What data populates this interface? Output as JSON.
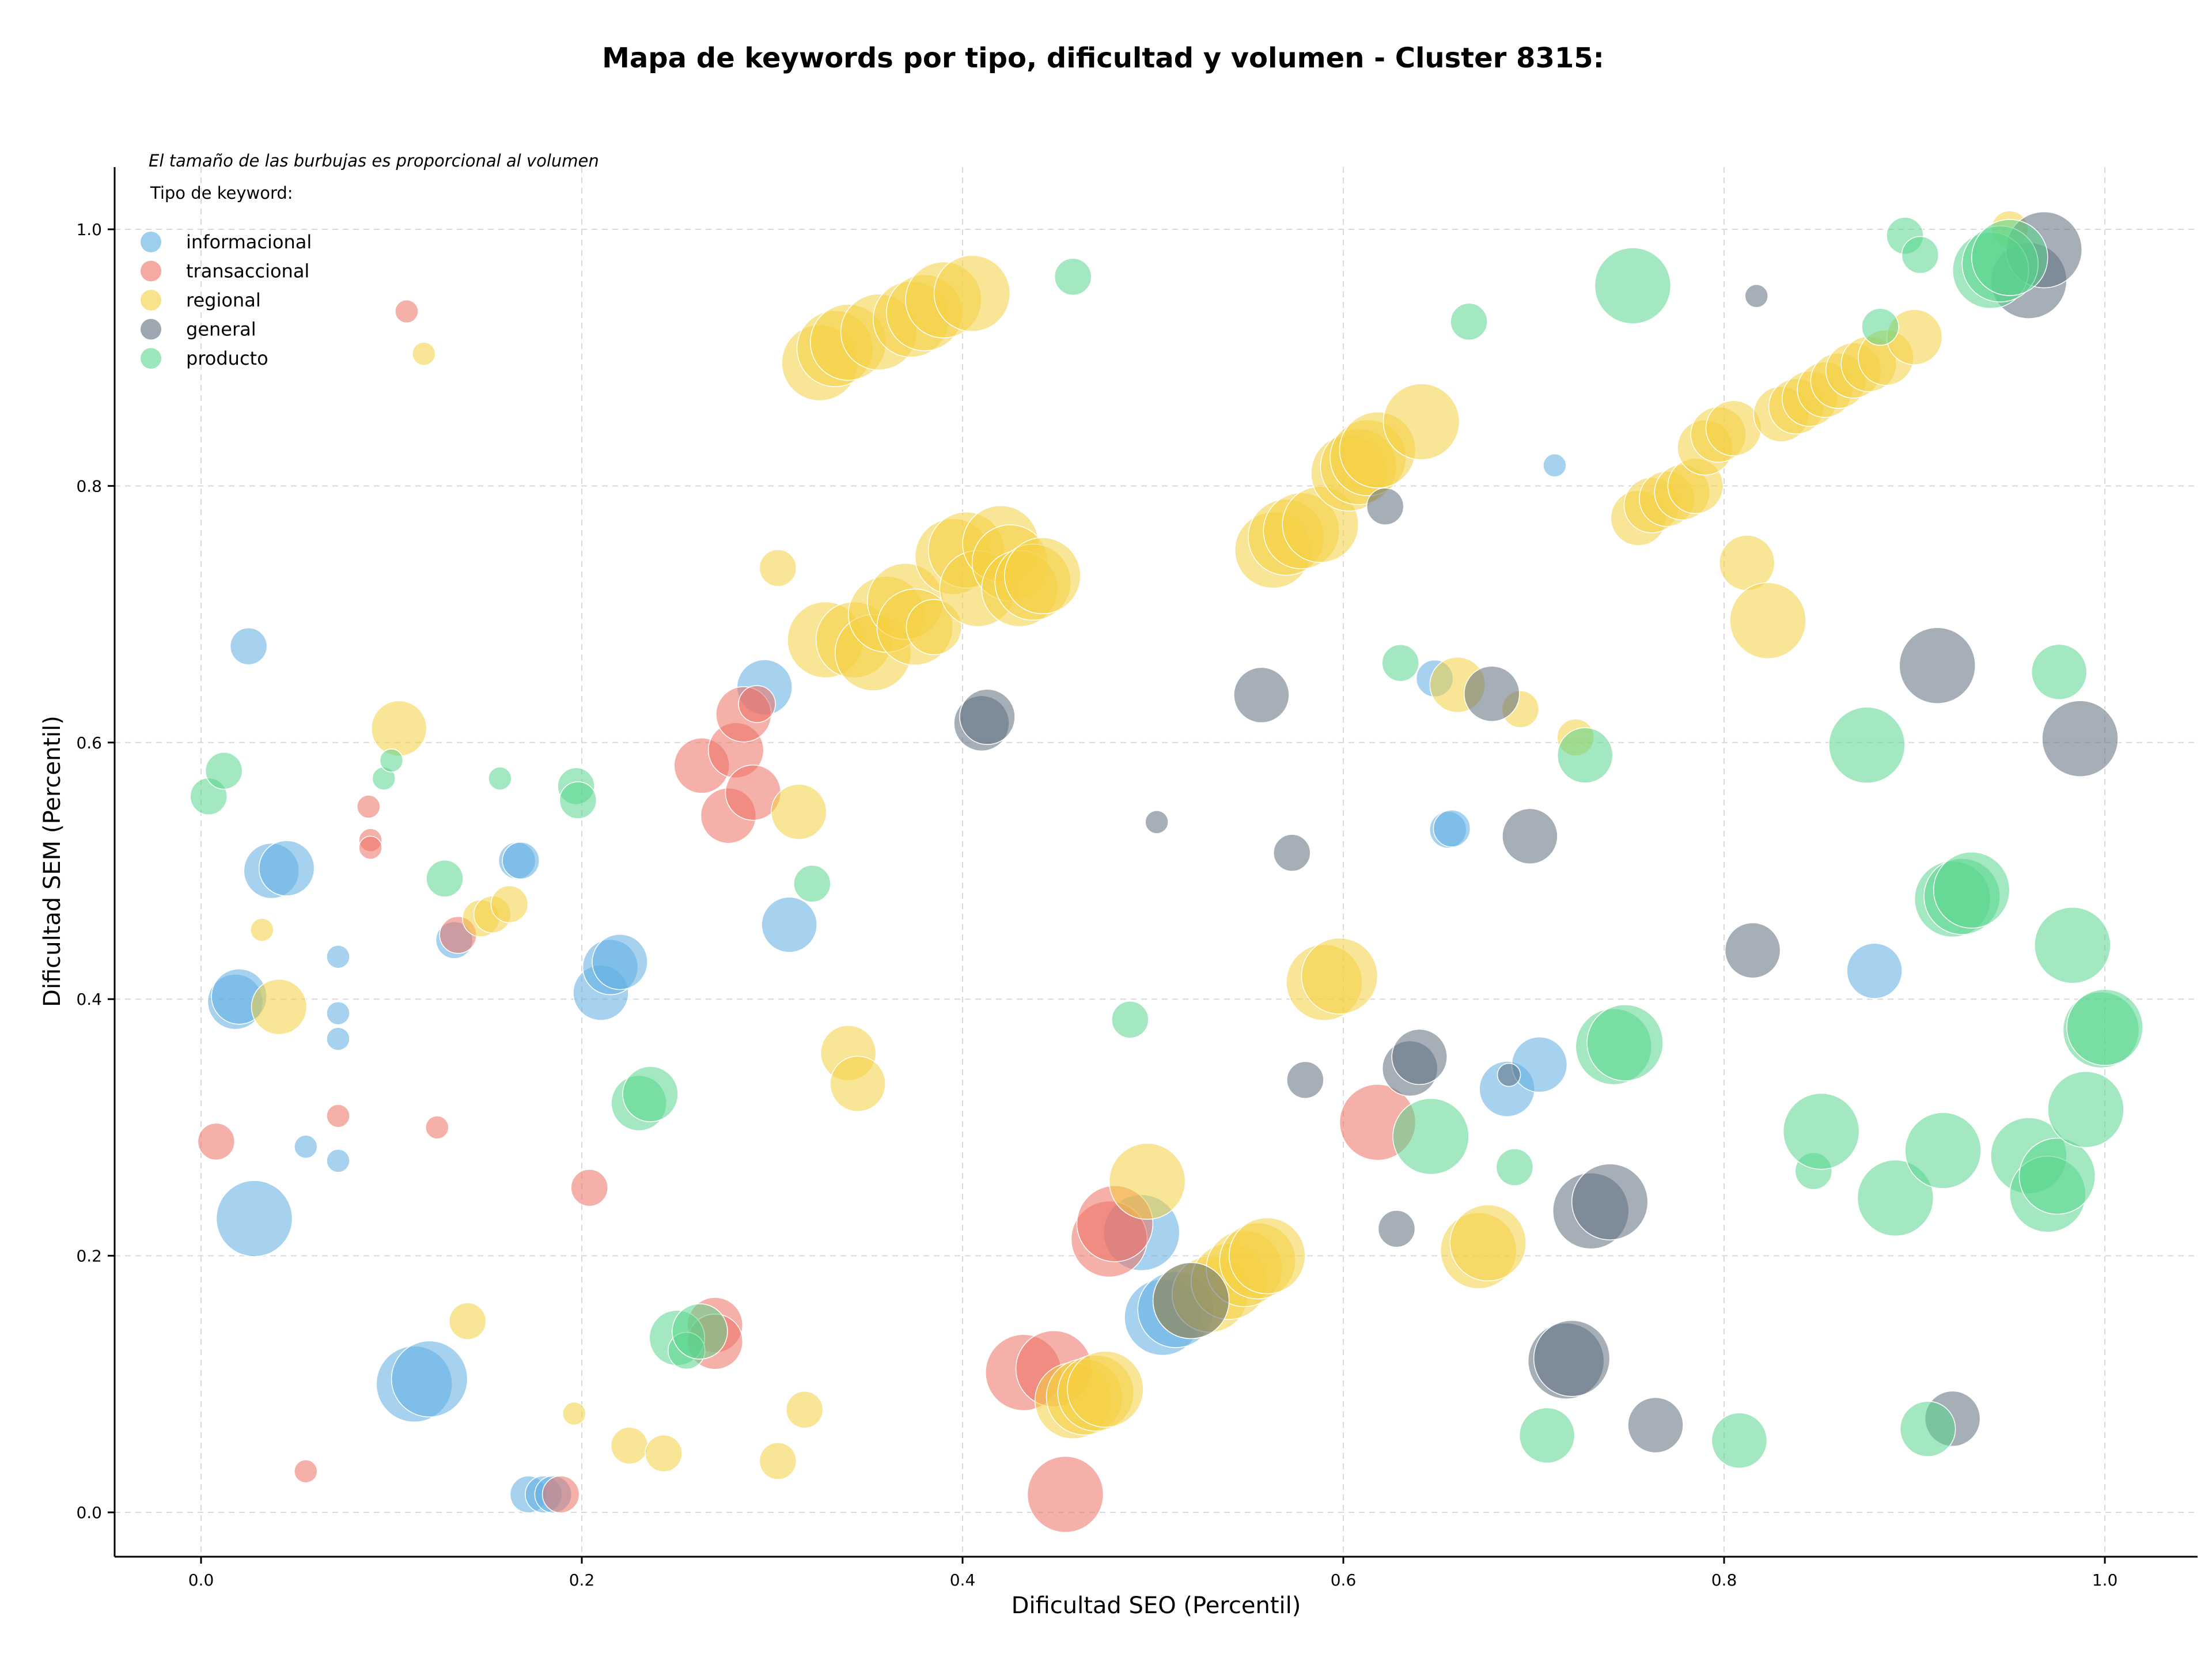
{
  "chart_data": {
    "type": "scatter",
    "title": "Mapa de keywords por tipo, dificultad y volumen - Cluster 8315:",
    "xlabel": "Dificultad SEO (Percentil)",
    "ylabel": "Dificultad SEM (Percentil)",
    "xlim": [
      -0.045,
      1.05
    ],
    "ylim": [
      -0.035,
      1.05
    ],
    "xticks": [
      "0.0",
      "0.2",
      "0.4",
      "0.6",
      "0.8",
      "1.0"
    ],
    "yticks": [
      "0.0",
      "0.2",
      "0.4",
      "0.6",
      "0.8",
      "1.0"
    ],
    "grid": true,
    "note": "El tamaño de las burbujas es proporcional al volumen",
    "legend_title": "Tipo de keyword:",
    "legend_position": "top-left",
    "series": [
      {
        "name": "informacional",
        "color": "#5DADE2",
        "points": [
          [
            0.025,
            0.675,
            1
          ],
          [
            0.037,
            0.5,
            2
          ],
          [
            0.045,
            0.502,
            2
          ],
          [
            0.018,
            0.398,
            2
          ],
          [
            0.02,
            0.402,
            2
          ],
          [
            0.072,
            0.433,
            0
          ],
          [
            0.072,
            0.389,
            0
          ],
          [
            0.072,
            0.369,
            0
          ],
          [
            0.055,
            0.285,
            0
          ],
          [
            0.072,
            0.274,
            0
          ],
          [
            0.028,
            0.229,
            3
          ],
          [
            0.112,
            0.1,
            3
          ],
          [
            0.12,
            0.104,
            3
          ],
          [
            0.133,
            0.446,
            1
          ],
          [
            0.166,
            0.508,
            1
          ],
          [
            0.168,
            0.508,
            1
          ],
          [
            0.21,
            0.405,
            2
          ],
          [
            0.215,
            0.425,
            2
          ],
          [
            0.22,
            0.429,
            2
          ],
          [
            0.172,
            0.014,
            1
          ],
          [
            0.18,
            0.014,
            1
          ],
          [
            0.185,
            0.014,
            1
          ],
          [
            0.296,
            0.643,
            2
          ],
          [
            0.309,
            0.458,
            2
          ],
          [
            0.494,
            0.218,
            3
          ],
          [
            0.505,
            0.152,
            3
          ],
          [
            0.512,
            0.158,
            3
          ],
          [
            0.648,
            0.65,
            1
          ],
          [
            0.655,
            0.532,
            1
          ],
          [
            0.657,
            0.533,
            1
          ],
          [
            0.686,
            0.33,
            2
          ],
          [
            0.703,
            0.349,
            2
          ],
          [
            0.711,
            0.816,
            0
          ],
          [
            0.879,
            0.422,
            2
          ]
        ]
      },
      {
        "name": "transaccional",
        "color": "#EC7063",
        "points": [
          [
            0.108,
            0.936,
            0
          ],
          [
            0.088,
            0.55,
            0
          ],
          [
            0.089,
            0.524,
            0
          ],
          [
            0.089,
            0.518,
            0
          ],
          [
            0.135,
            0.45,
            1
          ],
          [
            0.072,
            0.309,
            0
          ],
          [
            0.124,
            0.3,
            0
          ],
          [
            0.008,
            0.289,
            1
          ],
          [
            0.055,
            0.032,
            0
          ],
          [
            0.204,
            0.253,
            1
          ],
          [
            0.189,
            0.014,
            1
          ],
          [
            0.263,
            0.582,
            2
          ],
          [
            0.27,
            0.146,
            2
          ],
          [
            0.27,
            0.133,
            2
          ],
          [
            0.277,
            0.543,
            2
          ],
          [
            0.281,
            0.594,
            2
          ],
          [
            0.285,
            0.622,
            2
          ],
          [
            0.29,
            0.561,
            2
          ],
          [
            0.292,
            0.63,
            1
          ],
          [
            0.432,
            0.109,
            3
          ],
          [
            0.448,
            0.112,
            3
          ],
          [
            0.454,
            0.014,
            3
          ],
          [
            0.477,
            0.213,
            3
          ],
          [
            0.48,
            0.225,
            3
          ],
          [
            0.618,
            0.304,
            3
          ]
        ]
      },
      {
        "name": "regional",
        "color": "#F4D03F",
        "points": [
          [
            0.117,
            0.903,
            0
          ],
          [
            0.104,
            0.611,
            2
          ],
          [
            0.032,
            0.454,
            0
          ],
          [
            0.041,
            0.394,
            2
          ],
          [
            0.14,
            0.149,
            1
          ],
          [
            0.147,
            0.463,
            1
          ],
          [
            0.153,
            0.466,
            1
          ],
          [
            0.162,
            0.474,
            1
          ],
          [
            0.196,
            0.077,
            0
          ],
          [
            0.225,
            0.052,
            1
          ],
          [
            0.243,
            0.046,
            1
          ],
          [
            0.303,
            0.736,
            1
          ],
          [
            0.303,
            0.04,
            1
          ],
          [
            0.314,
            0.546,
            2
          ],
          [
            0.317,
            0.08,
            1
          ],
          [
            0.325,
            0.896,
            3
          ],
          [
            0.333,
            0.907,
            3
          ],
          [
            0.34,
            0.912,
            3
          ],
          [
            0.356,
            0.92,
            3
          ],
          [
            0.373,
            0.93,
            3
          ],
          [
            0.38,
            0.935,
            3
          ],
          [
            0.39,
            0.945,
            3
          ],
          [
            0.405,
            0.95,
            3
          ],
          [
            0.328,
            0.68,
            3
          ],
          [
            0.343,
            0.68,
            3
          ],
          [
            0.353,
            0.67,
            3
          ],
          [
            0.36,
            0.7,
            3
          ],
          [
            0.37,
            0.71,
            3
          ],
          [
            0.375,
            0.69,
            3
          ],
          [
            0.385,
            0.69,
            2
          ],
          [
            0.395,
            0.745,
            3
          ],
          [
            0.402,
            0.75,
            3
          ],
          [
            0.408,
            0.72,
            3
          ],
          [
            0.42,
            0.755,
            3
          ],
          [
            0.425,
            0.74,
            3
          ],
          [
            0.43,
            0.72,
            3
          ],
          [
            0.437,
            0.725,
            3
          ],
          [
            0.442,
            0.73,
            3
          ],
          [
            0.34,
            0.358,
            2
          ],
          [
            0.345,
            0.334,
            2
          ],
          [
            0.458,
            0.087,
            3
          ],
          [
            0.464,
            0.09,
            3
          ],
          [
            0.47,
            0.093,
            3
          ],
          [
            0.475,
            0.096,
            3
          ],
          [
            0.497,
            0.258,
            3
          ],
          [
            0.52,
            0.165,
            3
          ],
          [
            0.53,
            0.17,
            3
          ],
          [
            0.54,
            0.18,
            3
          ],
          [
            0.548,
            0.19,
            3
          ],
          [
            0.555,
            0.196,
            3
          ],
          [
            0.56,
            0.2,
            3
          ],
          [
            0.563,
            0.75,
            3
          ],
          [
            0.57,
            0.76,
            3
          ],
          [
            0.578,
            0.765,
            3
          ],
          [
            0.588,
            0.77,
            3
          ],
          [
            0.59,
            0.413,
            3
          ],
          [
            0.598,
            0.418,
            3
          ],
          [
            0.603,
            0.81,
            3
          ],
          [
            0.608,
            0.815,
            3
          ],
          [
            0.613,
            0.822,
            3
          ],
          [
            0.618,
            0.828,
            3
          ],
          [
            0.641,
            0.85,
            3
          ],
          [
            0.66,
            0.645,
            2
          ],
          [
            0.693,
            0.626,
            1
          ],
          [
            0.722,
            0.604,
            1
          ],
          [
            0.671,
            0.204,
            3
          ],
          [
            0.676,
            0.21,
            3
          ],
          [
            0.755,
            0.775,
            2
          ],
          [
            0.762,
            0.785,
            2
          ],
          [
            0.77,
            0.79,
            2
          ],
          [
            0.778,
            0.795,
            2
          ],
          [
            0.785,
            0.8,
            2
          ],
          [
            0.79,
            0.83,
            2
          ],
          [
            0.797,
            0.84,
            2
          ],
          [
            0.805,
            0.845,
            2
          ],
          [
            0.812,
            0.74,
            2
          ],
          [
            0.823,
            0.695,
            3
          ],
          [
            0.83,
            0.856,
            2
          ],
          [
            0.838,
            0.862,
            2
          ],
          [
            0.845,
            0.868,
            2
          ],
          [
            0.853,
            0.875,
            2
          ],
          [
            0.86,
            0.882,
            2
          ],
          [
            0.868,
            0.89,
            2
          ],
          [
            0.876,
            0.895,
            2
          ],
          [
            0.885,
            0.9,
            2
          ],
          [
            0.9,
            0.916,
            2
          ],
          [
            0.95,
            1.0,
            1
          ]
        ]
      },
      {
        "name": "general",
        "color": "#5D6D7E",
        "points": [
          [
            0.41,
            0.615,
            2
          ],
          [
            0.413,
            0.62,
            2
          ],
          [
            0.502,
            0.538,
            0
          ],
          [
            0.52,
            0.165,
            3
          ],
          [
            0.557,
            0.637,
            2
          ],
          [
            0.573,
            0.514,
            1
          ],
          [
            0.58,
            0.337,
            1
          ],
          [
            0.622,
            0.784,
            1
          ],
          [
            0.628,
            0.221,
            1
          ],
          [
            0.635,
            0.346,
            2
          ],
          [
            0.64,
            0.355,
            2
          ],
          [
            0.678,
            0.638,
            2
          ],
          [
            0.687,
            0.341,
            0
          ],
          [
            0.698,
            0.527,
            2
          ],
          [
            0.717,
            0.118,
            3
          ],
          [
            0.72,
            0.12,
            3
          ],
          [
            0.73,
            0.235,
            3
          ],
          [
            0.74,
            0.242,
            3
          ],
          [
            0.764,
            0.068,
            2
          ],
          [
            0.817,
            0.948,
            0
          ],
          [
            0.815,
            0.438,
            2
          ],
          [
            0.912,
            0.66,
            3
          ],
          [
            0.92,
            0.073,
            2
          ],
          [
            0.96,
            0.96,
            3
          ],
          [
            0.968,
            0.984,
            3
          ],
          [
            0.987,
            0.603,
            3
          ]
        ]
      },
      {
        "name": "producto",
        "color": "#58D68D",
        "points": [
          [
            0.004,
            0.558,
            1
          ],
          [
            0.012,
            0.578,
            1
          ],
          [
            0.096,
            0.572,
            0
          ],
          [
            0.1,
            0.586,
            0
          ],
          [
            0.128,
            0.494,
            1
          ],
          [
            0.157,
            0.572,
            0
          ],
          [
            0.197,
            0.566,
            1
          ],
          [
            0.198,
            0.555,
            1
          ],
          [
            0.23,
            0.319,
            2
          ],
          [
            0.236,
            0.326,
            2
          ],
          [
            0.25,
            0.136,
            2
          ],
          [
            0.255,
            0.126,
            1
          ],
          [
            0.262,
            0.141,
            2
          ],
          [
            0.321,
            0.49,
            1
          ],
          [
            0.458,
            0.963,
            1
          ],
          [
            0.488,
            0.384,
            1
          ],
          [
            0.63,
            0.662,
            1
          ],
          [
            0.646,
            0.293,
            3
          ],
          [
            0.666,
            0.928,
            1
          ],
          [
            0.69,
            0.269,
            1
          ],
          [
            0.707,
            0.06,
            2
          ],
          [
            0.727,
            0.59,
            2
          ],
          [
            0.742,
            0.363,
            3
          ],
          [
            0.748,
            0.366,
            3
          ],
          [
            0.752,
            0.956,
            3
          ],
          [
            0.808,
            0.056,
            2
          ],
          [
            0.847,
            0.266,
            1
          ],
          [
            0.851,
            0.297,
            3
          ],
          [
            0.875,
            0.598,
            3
          ],
          [
            0.882,
            0.924,
            1
          ],
          [
            0.89,
            0.245,
            3
          ],
          [
            0.895,
            0.995,
            1
          ],
          [
            0.903,
            0.98,
            1
          ],
          [
            0.907,
            0.065,
            2
          ],
          [
            0.915,
            0.282,
            3
          ],
          [
            0.92,
            0.478,
            3
          ],
          [
            0.925,
            0.48,
            3
          ],
          [
            0.93,
            0.485,
            3
          ],
          [
            0.94,
            0.968,
            3
          ],
          [
            0.945,
            0.973,
            3
          ],
          [
            0.95,
            0.978,
            3
          ],
          [
            0.96,
            0.278,
            3
          ],
          [
            0.97,
            0.248,
            3
          ],
          [
            0.975,
            0.262,
            3
          ],
          [
            0.976,
            0.655,
            2
          ],
          [
            0.983,
            0.442,
            3
          ],
          [
            0.99,
            0.314,
            3
          ],
          [
            0.998,
            0.376,
            3
          ],
          [
            1.0,
            0.378,
            3
          ]
        ]
      }
    ]
  }
}
